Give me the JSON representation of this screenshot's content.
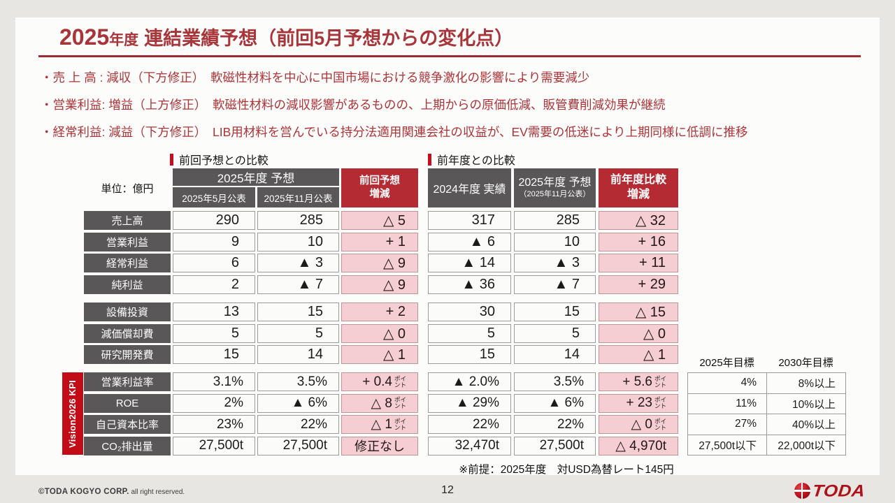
{
  "title": {
    "year": "2025",
    "era": "年度",
    "main": "連結業績予想（前回5月予想からの変化点）"
  },
  "bullets": [
    "・売 上 高 : 減収（下方修正）　軟磁性材料を中心に中国市場における競争激化の影響により需要減少",
    "・営業利益: 増益（上方修正）　軟磁性材料の減収影響があるものの、上期からの原価低減、販管費削減効果が継続",
    "・経常利益: 減益（下方修正）　LIB用材料を営んでいる持分法適用関連会社の収益が、EV需要の低迷により上期同様に低調に推移"
  ],
  "sections": {
    "left": "前回予想との比較",
    "right": "前年度との比較"
  },
  "left_header": {
    "unit": "単位：億円",
    "span": "2025年度 予想",
    "sub1": "2025年5月公表",
    "sub2": "2025年11月公表",
    "chg1": "前回予想",
    "chg2": "増減"
  },
  "right_header": {
    "c1": "2024年度 実績",
    "c2": "2025年度 予想",
    "c2s": "（2025年11月公表）",
    "chg1": "前年度比較",
    "chg2": "増減"
  },
  "kpi_side_label": "Vision2026 KPI",
  "goals_header": {
    "h1": "2025年目標",
    "h2": "2030年目標"
  },
  "rows": {
    "block1": [
      {
        "label": "売上高",
        "l1": "290",
        "l2": "285",
        "lc": "△ 5",
        "r1": "317",
        "r2": "285",
        "rc": "△ 32"
      },
      {
        "label": "営業利益",
        "l1": "9",
        "l2": "10",
        "lc": "+ 1",
        "r1": "▲ 6",
        "r2": "10",
        "rc": "+ 16"
      },
      {
        "label": "経常利益",
        "l1": "6",
        "l2": "▲ 3",
        "lc": "△ 9",
        "r1": "▲ 14",
        "r2": "▲ 3",
        "rc": "+ 11"
      },
      {
        "label": "純利益",
        "l1": "2",
        "l2": "▲ 7",
        "lc": "△ 9",
        "r1": "▲ 36",
        "r2": "▲ 7",
        "rc": "+ 29"
      }
    ],
    "block2": [
      {
        "label": "設備投資",
        "l1": "13",
        "l2": "15",
        "lc": "+ 2",
        "r1": "30",
        "r2": "15",
        "rc": "△ 15"
      },
      {
        "label": "減価償却費",
        "l1": "5",
        "l2": "5",
        "lc": "△ 0",
        "r1": "5",
        "r2": "5",
        "rc": "△ 0"
      },
      {
        "label": "研究開発費",
        "l1": "15",
        "l2": "14",
        "lc": "△ 1",
        "r1": "15",
        "r2": "14",
        "rc": "△ 1"
      }
    ],
    "kpi": [
      {
        "label": "営業利益率",
        "l1": "3.1%",
        "l2": "3.5%",
        "lc": "+ 0.4",
        "lc_unit": "ポイント",
        "r1": "▲ 2.0%",
        "r2": "3.5%",
        "rc": "+ 5.6",
        "rc_unit": "ポイント",
        "g1": "4%",
        "g2": "8%以上"
      },
      {
        "label": "ROE",
        "l1": "2%",
        "l2": "▲ 6%",
        "lc": "△ 8",
        "lc_unit": "ポイント",
        "r1": "▲ 29%",
        "r2": "▲ 6%",
        "rc": "+ 23",
        "rc_unit": "ポイント",
        "g1": "11%",
        "g2": "10%以上"
      },
      {
        "label": "自己資本比率",
        "l1": "23%",
        "l2": "22%",
        "lc": "△ 1",
        "lc_unit": "ポイント",
        "r1": "22%",
        "r2": "22%",
        "rc": "△ 0",
        "rc_unit": "ポイント",
        "g1": "27%",
        "g2": "40%以上"
      },
      {
        "label": "CO₂排出量",
        "l1": "27,500t",
        "l2": "27,500t",
        "lc": "修正なし",
        "r1": "32,470t",
        "r2": "27,500t",
        "rc": "△ 4,970t",
        "g1": "27,500t以下",
        "g2": "22,000t以下"
      }
    ]
  },
  "footnote": "※前提：2025年度　対USD為替レート145円",
  "footer": {
    "copyright": "©TODA KOGYO CORP.",
    "rights": "all right reserved.",
    "page": "12",
    "logo_text": "TODA"
  },
  "colors": {
    "accent_red": "#c60f1e",
    "header_red": "#b42b33",
    "dark_gray": "#595757",
    "pink": "#f4ced2",
    "title_red": "#a8353a"
  }
}
